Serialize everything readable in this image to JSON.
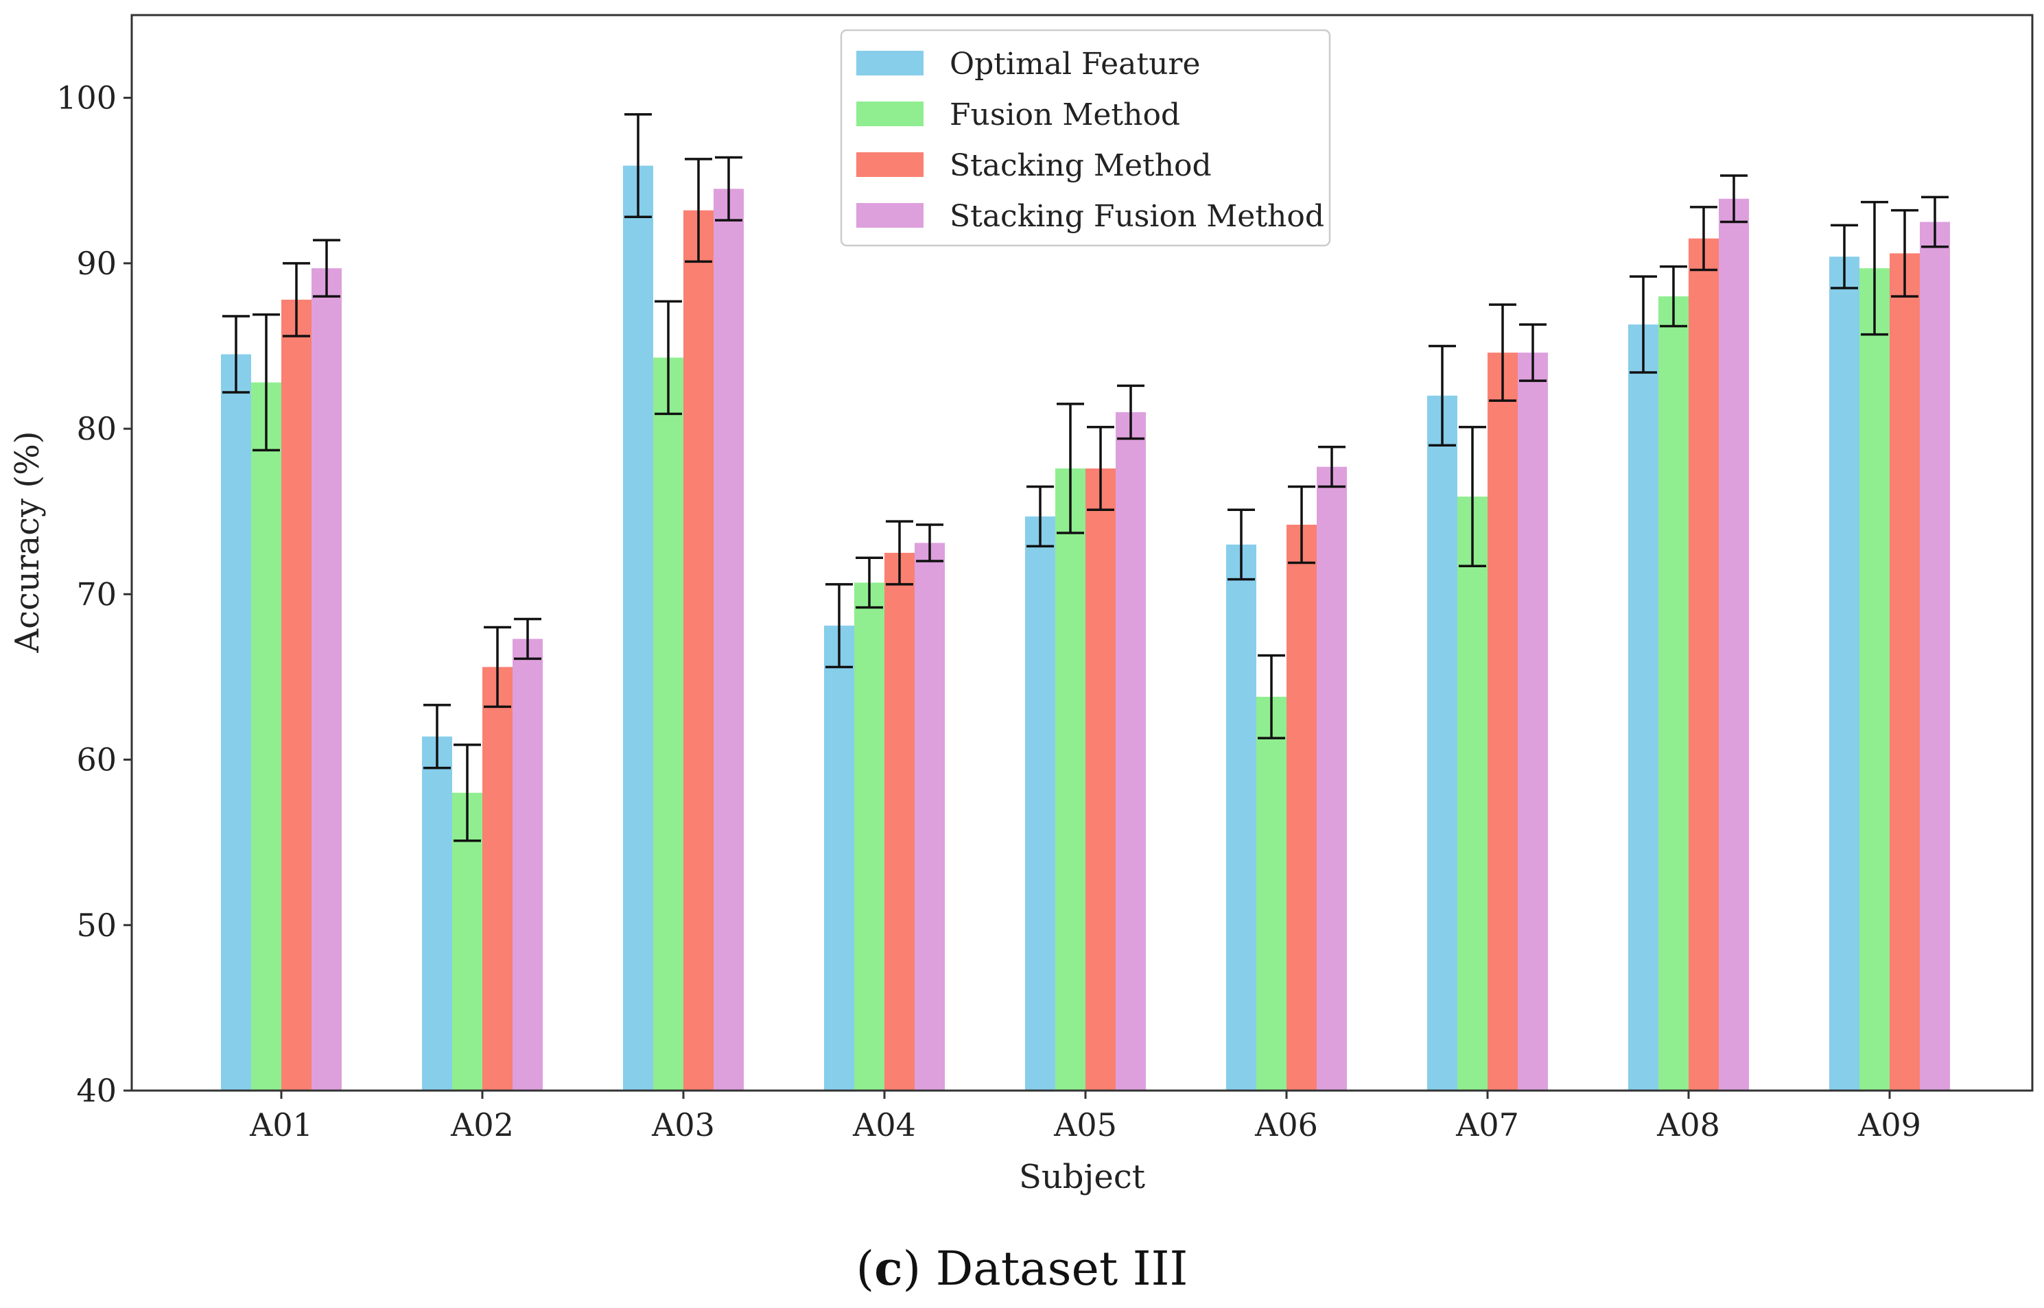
{
  "caption": {
    "paren_open": "(",
    "letter": "c",
    "paren_close": ")",
    "text": "Dataset III"
  },
  "chart_data": {
    "type": "bar",
    "title": "",
    "xlabel": "Subject",
    "ylabel": "Accuracy (%)",
    "ylim": [
      40,
      105
    ],
    "yticks": [
      40,
      50,
      60,
      70,
      80,
      90,
      100
    ],
    "grid": false,
    "legend_position": "top-center",
    "categories": [
      "A01",
      "A02",
      "A03",
      "A04",
      "A05",
      "A06",
      "A07",
      "A08",
      "A09"
    ],
    "series": [
      {
        "name": "Optimal Feature",
        "color": "#87ceeb",
        "values": [
          84.5,
          61.4,
          95.9,
          68.1,
          74.7,
          73.0,
          82.0,
          86.3,
          90.4
        ],
        "errors": [
          2.3,
          1.9,
          3.1,
          2.5,
          1.8,
          2.1,
          3.0,
          2.9,
          1.9
        ]
      },
      {
        "name": "Fusion Method",
        "color": "#90ee90",
        "values": [
          82.8,
          58.0,
          84.3,
          70.7,
          77.6,
          63.8,
          75.9,
          88.0,
          89.7
        ],
        "errors": [
          4.1,
          2.9,
          3.4,
          1.5,
          3.9,
          2.5,
          4.2,
          1.8,
          4.0
        ]
      },
      {
        "name": "Stacking Method",
        "color": "#fa8072",
        "values": [
          87.8,
          65.6,
          93.2,
          72.5,
          77.6,
          74.2,
          84.6,
          91.5,
          90.6
        ],
        "errors": [
          2.2,
          2.4,
          3.1,
          1.9,
          2.5,
          2.3,
          2.9,
          1.9,
          2.6
        ]
      },
      {
        "name": "Stacking Fusion Method",
        "color": "#dda0dd",
        "values": [
          89.7,
          67.3,
          94.5,
          73.1,
          81.0,
          77.7,
          84.6,
          93.9,
          92.5
        ],
        "errors": [
          1.7,
          1.2,
          1.9,
          1.1,
          1.6,
          1.2,
          1.7,
          1.4,
          1.5
        ]
      }
    ]
  }
}
